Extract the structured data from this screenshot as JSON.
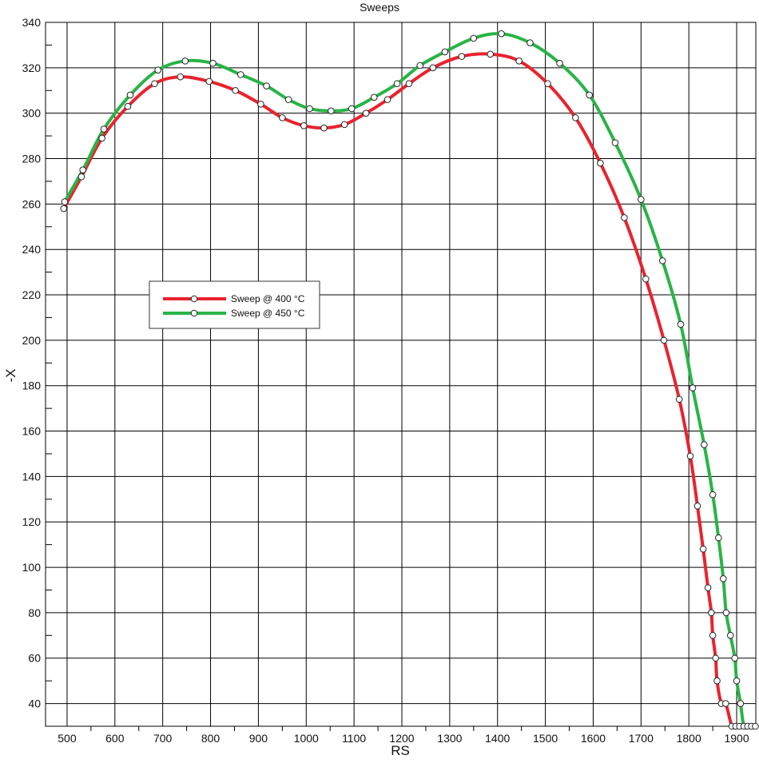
{
  "chart_data": {
    "type": "line",
    "title": "Sweeps",
    "xlabel": "RS",
    "ylabel": "-X",
    "xlim": [
      455,
      1940
    ],
    "ylim": [
      30,
      340
    ],
    "grid": true,
    "legend_position": "left-middle",
    "x_ticks": [
      500,
      600,
      700,
      800,
      900,
      1000,
      1100,
      1200,
      1300,
      1400,
      1500,
      1600,
      1700,
      1800,
      1900
    ],
    "y_ticks": [
      40,
      60,
      80,
      100,
      120,
      140,
      160,
      180,
      200,
      220,
      240,
      260,
      280,
      300,
      320,
      340
    ],
    "series": [
      {
        "name": "Sweep @ 400 °C",
        "color": "#e8232e",
        "points": [
          [
            493,
            258
          ],
          [
            530,
            272
          ],
          [
            573,
            289
          ],
          [
            627,
            303
          ],
          [
            683,
            313
          ],
          [
            737,
            316
          ],
          [
            797,
            314
          ],
          [
            852,
            310
          ],
          [
            905,
            304
          ],
          [
            950,
            298
          ],
          [
            995,
            294.5
          ],
          [
            1037,
            293.5
          ],
          [
            1080,
            295
          ],
          [
            1125,
            300
          ],
          [
            1170,
            306
          ],
          [
            1215,
            313
          ],
          [
            1265,
            320
          ],
          [
            1325,
            325
          ],
          [
            1385,
            326
          ],
          [
            1445,
            323
          ],
          [
            1505,
            313
          ],
          [
            1563,
            298
          ],
          [
            1615,
            278
          ],
          [
            1665,
            254
          ],
          [
            1710,
            227
          ],
          [
            1748,
            200
          ],
          [
            1780,
            174
          ],
          [
            1803,
            149
          ],
          [
            1818,
            127
          ],
          [
            1830,
            108
          ],
          [
            1840,
            91
          ],
          [
            1847,
            80
          ],
          [
            1850,
            70
          ],
          [
            1856,
            60
          ],
          [
            1859,
            50
          ],
          [
            1868,
            40
          ],
          [
            1877,
            40
          ],
          [
            1890,
            30
          ],
          [
            1898,
            30
          ],
          [
            1906,
            30
          ]
        ]
      },
      {
        "name": "Sweep @ 450 °C",
        "color": "#28b446",
        "points": [
          [
            495,
            261
          ],
          [
            533,
            275
          ],
          [
            577,
            293
          ],
          [
            632,
            308
          ],
          [
            690,
            319
          ],
          [
            747,
            323
          ],
          [
            805,
            322
          ],
          [
            863,
            317
          ],
          [
            917,
            312
          ],
          [
            963,
            306
          ],
          [
            1007,
            302
          ],
          [
            1052,
            301
          ],
          [
            1095,
            302
          ],
          [
            1142,
            307
          ],
          [
            1190,
            313
          ],
          [
            1238,
            321
          ],
          [
            1290,
            327
          ],
          [
            1350,
            333
          ],
          [
            1408,
            335
          ],
          [
            1468,
            331
          ],
          [
            1530,
            322
          ],
          [
            1592,
            308
          ],
          [
            1646,
            287
          ],
          [
            1700,
            262
          ],
          [
            1745,
            235
          ],
          [
            1783,
            207
          ],
          [
            1808,
            179
          ],
          [
            1832,
            154
          ],
          [
            1850,
            132
          ],
          [
            1862,
            113
          ],
          [
            1872,
            95
          ],
          [
            1878,
            80
          ],
          [
            1887,
            70
          ],
          [
            1896,
            60
          ],
          [
            1900,
            50
          ],
          [
            1908,
            40
          ],
          [
            1915,
            30
          ],
          [
            1923,
            30
          ],
          [
            1931,
            30
          ],
          [
            1939,
            30
          ]
        ]
      }
    ]
  }
}
